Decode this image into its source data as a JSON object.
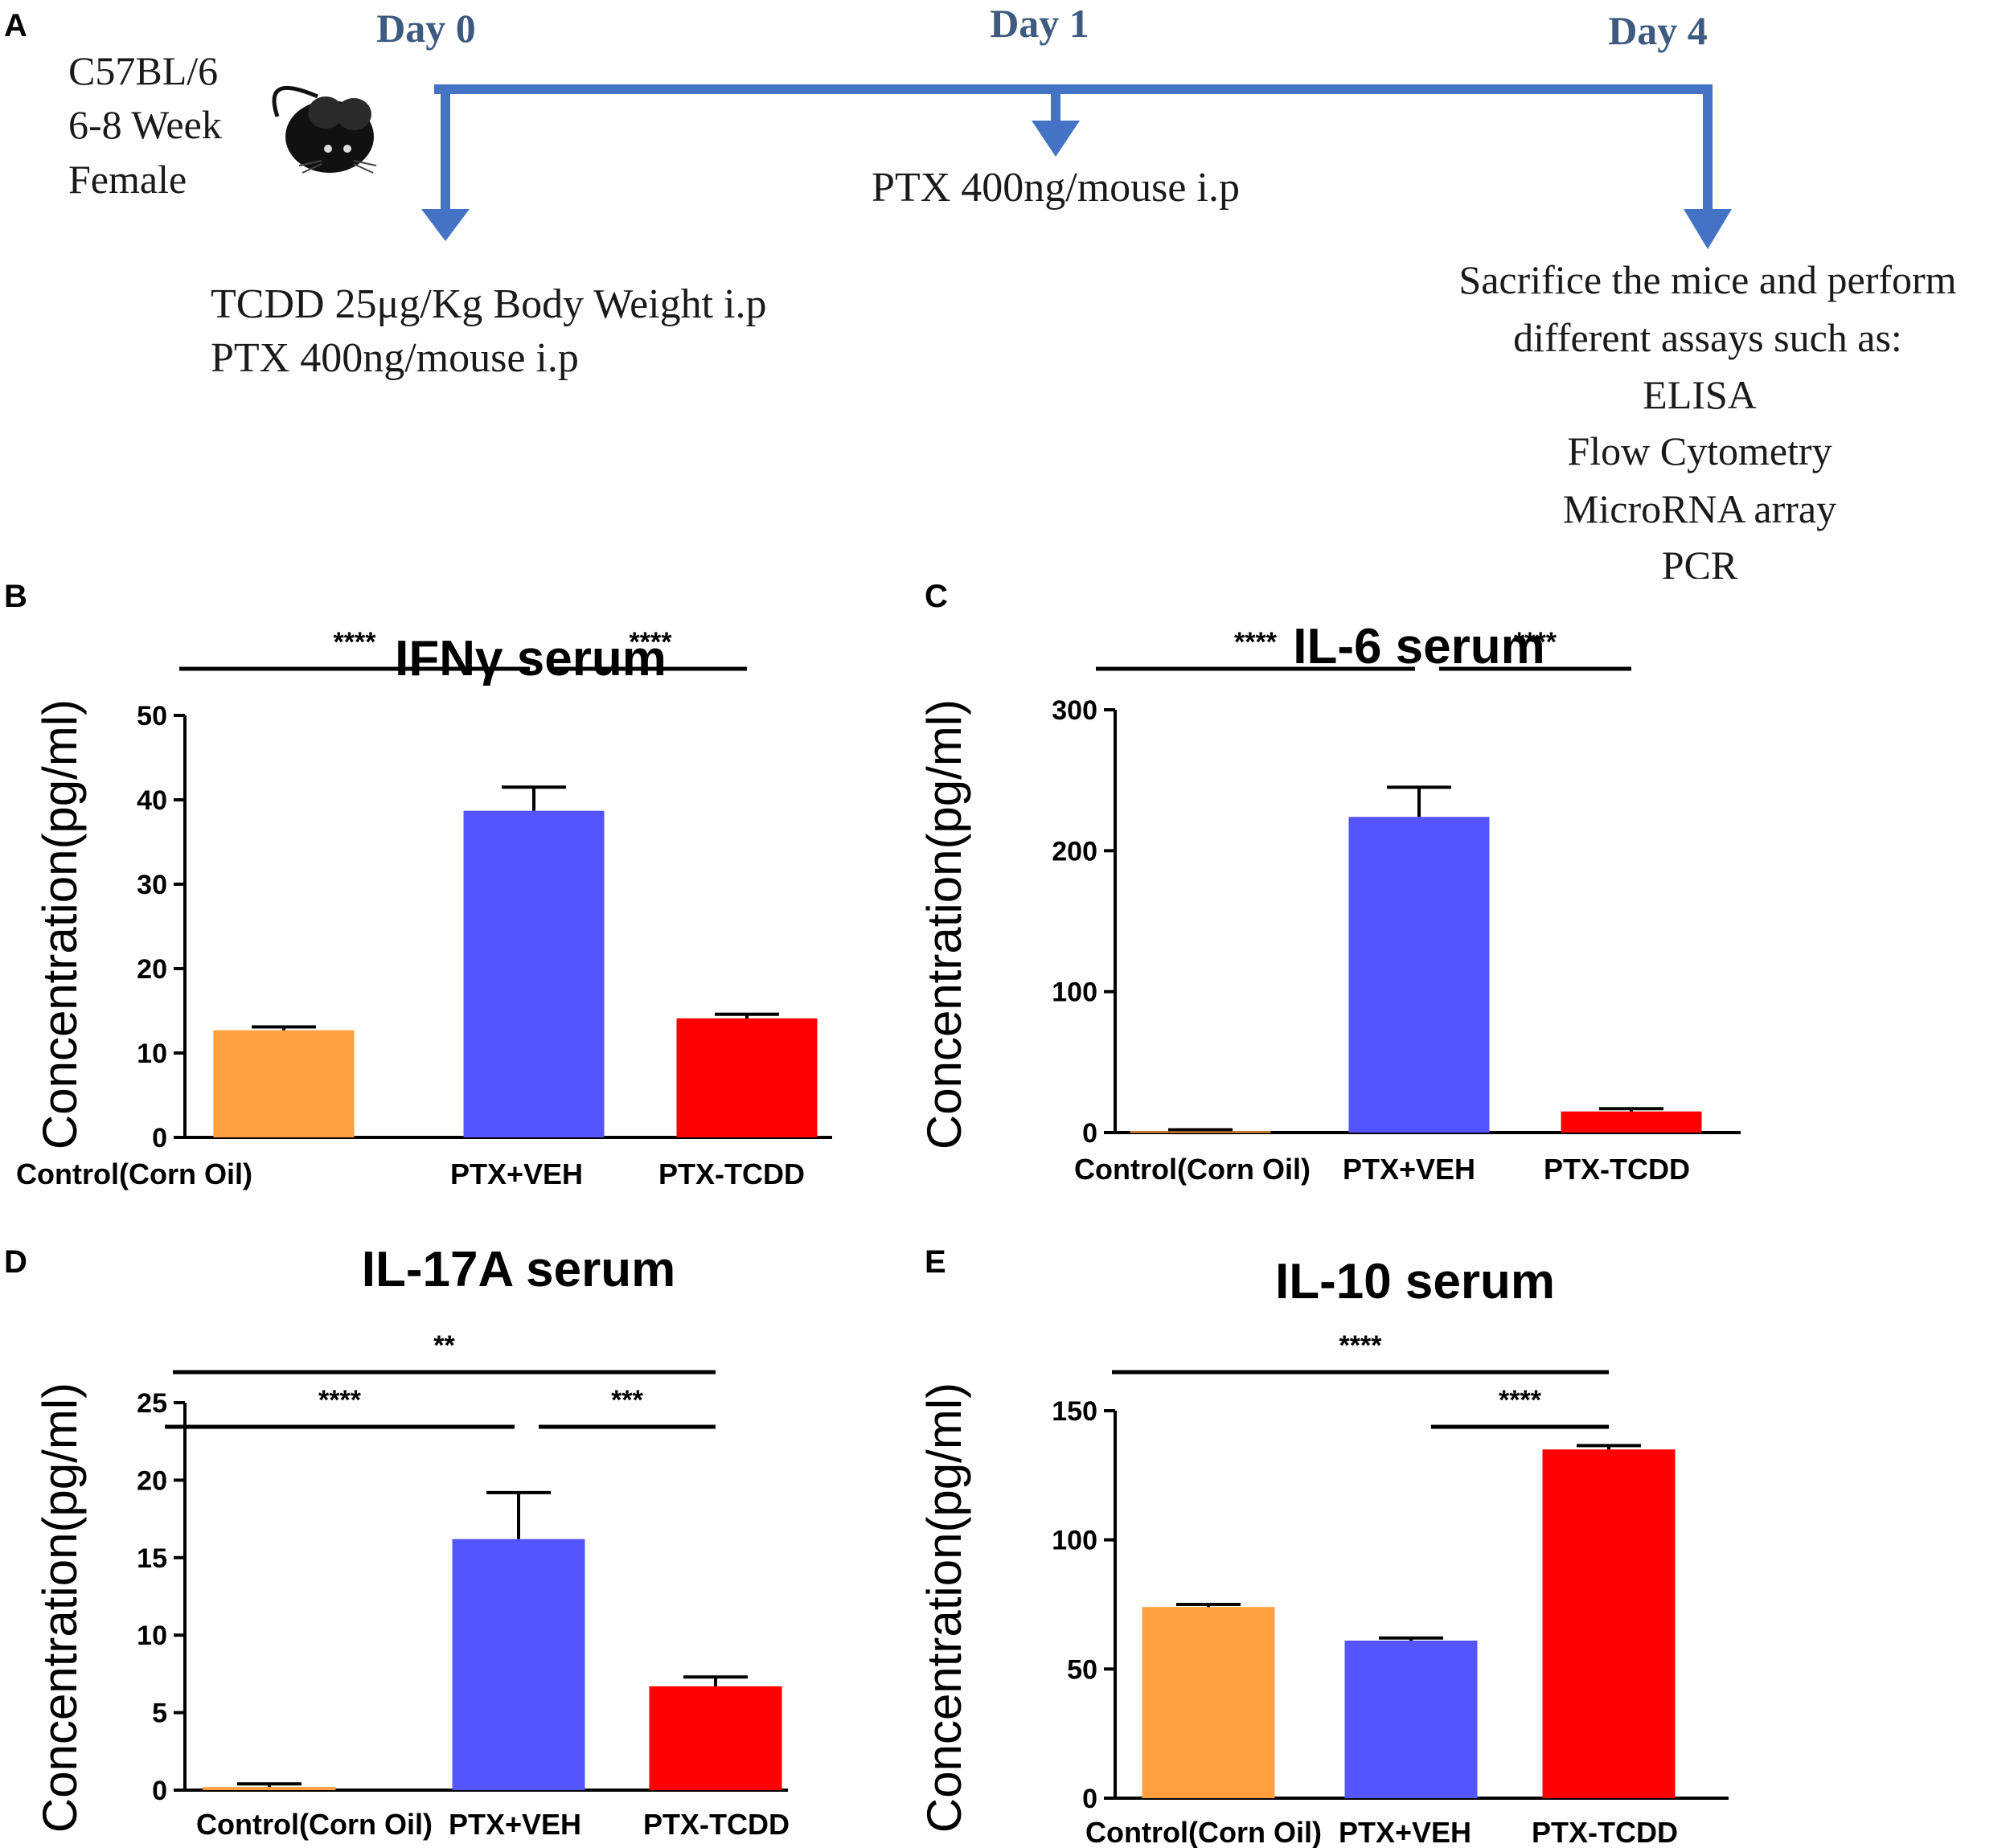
{
  "timeline": {
    "panel_label": "A",
    "mouse": {
      "strain": "C57BL/6",
      "age": "6-8 Week",
      "sex": "Female",
      "icon": "mouse-icon"
    },
    "days": [
      {
        "label": "Day 0",
        "treatments": [
          "TCDD 25μg/Kg  Body Weight i.p",
          "PTX 400ng/mouse i.p"
        ]
      },
      {
        "label": "Day 1",
        "treatments": [
          "PTX 400ng/mouse i.p"
        ]
      },
      {
        "label": "Day 4",
        "treatments": [
          "Sacrifice the mice and perform",
          "different assays such as:",
          "ELISA",
          "Flow Cytometry",
          "MicroRNA array",
          "PCR"
        ]
      }
    ],
    "arrow_color": "#4472c4"
  },
  "colors": {
    "control": "#ff9f40",
    "veh": "#5555ff",
    "tcdd": "#ff0000"
  },
  "chart_data": [
    {
      "panel": "B",
      "type": "bar",
      "title": "IFNγ serum",
      "ylabel": "Concentration(pg/ml)",
      "ylim": [
        0,
        50
      ],
      "yticks": [
        0,
        10,
        20,
        30,
        40,
        50
      ],
      "categories": [
        "Control(Corn Oil)",
        "PTX+VEH",
        "PTX-TCDD"
      ],
      "values": [
        12.7,
        38.7,
        14.1
      ],
      "errors": [
        0.4,
        2.8,
        0.5
      ],
      "significance": [
        {
          "from": 0,
          "to": 1,
          "label": "****",
          "level": 1
        },
        {
          "from": 1,
          "to": 2,
          "label": "****",
          "level": 1
        }
      ]
    },
    {
      "panel": "C",
      "type": "bar",
      "title": "IL-6 serum",
      "ylabel": "Concentration(pg/ml)",
      "ylim": [
        0,
        300
      ],
      "yticks": [
        0,
        100,
        200,
        300
      ],
      "categories": [
        "Control(Corn Oil)",
        "PTX+VEH",
        "PTX-TCDD"
      ],
      "values": [
        1,
        224,
        15
      ],
      "errors": [
        1,
        21,
        2
      ],
      "significance": [
        {
          "from": 0,
          "to": 1,
          "label": "****",
          "level": 1
        },
        {
          "from": 1,
          "to": 2,
          "label": "****",
          "level": 1
        }
      ]
    },
    {
      "panel": "D",
      "type": "bar",
      "title": "IL-17A serum",
      "ylabel": "Concentration(pg/ml)",
      "ylim": [
        0,
        25
      ],
      "yticks": [
        0,
        5,
        10,
        15,
        20,
        25
      ],
      "categories": [
        "Control(Corn Oil)",
        "PTX+VEH",
        "PTX-TCDD"
      ],
      "values": [
        0.2,
        16.2,
        6.7
      ],
      "errors": [
        0.2,
        3.0,
        0.6
      ],
      "significance": [
        {
          "from": 0,
          "to": 2,
          "label": "**",
          "level": 2
        },
        {
          "from": 0,
          "to": 1,
          "label": "****",
          "level": 1
        },
        {
          "from": 1,
          "to": 2,
          "label": "***",
          "level": 1
        }
      ]
    },
    {
      "panel": "E",
      "type": "bar",
      "title": "IL-10 serum",
      "ylabel": "Concentration(pg/ml)",
      "ylim": [
        0,
        150
      ],
      "yticks": [
        0,
        50,
        100,
        150
      ],
      "categories": [
        "Control(Corn Oil)",
        "PTX+VEH",
        "PTX-TCDD"
      ],
      "values": [
        74,
        61,
        135
      ],
      "errors": [
        1,
        1,
        1.5
      ],
      "significance": [
        {
          "from": 0,
          "to": 2,
          "label": "****",
          "level": 2
        },
        {
          "from": 1,
          "to": 2,
          "label": "****",
          "level": 1
        }
      ]
    }
  ]
}
